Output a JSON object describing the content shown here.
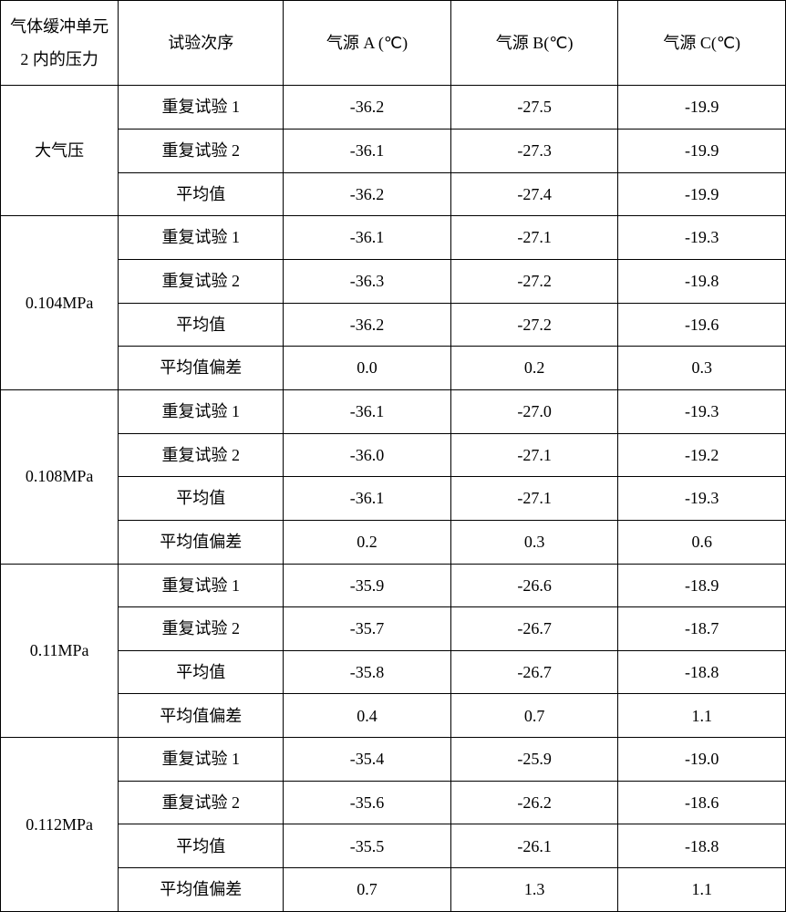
{
  "table": {
    "background_color": "#ffffff",
    "border_color": "#000000",
    "text_color": "#000000",
    "font_size": 18,
    "headers": {
      "pressure": "气体缓冲单元 2 内的压力",
      "trial": "试验次序",
      "sourceA": "气源 A (℃)",
      "sourceB": "气源 B(℃)",
      "sourceC": "气源 C(℃)"
    },
    "row_labels": {
      "trial1": "重复试验 1",
      "trial2": "重复试验 2",
      "mean": "平均值",
      "deviation": "平均值偏差"
    },
    "groups": [
      {
        "pressure": "大气压",
        "has_deviation": false,
        "rows": [
          {
            "label": "trial1",
            "a": "-36.2",
            "b": "-27.5",
            "c": "-19.9"
          },
          {
            "label": "trial2",
            "a": "-36.1",
            "b": "-27.3",
            "c": "-19.9"
          },
          {
            "label": "mean",
            "a": "-36.2",
            "b": "-27.4",
            "c": "-19.9"
          }
        ]
      },
      {
        "pressure": "0.104MPa",
        "has_deviation": true,
        "rows": [
          {
            "label": "trial1",
            "a": "-36.1",
            "b": "-27.1",
            "c": "-19.3"
          },
          {
            "label": "trial2",
            "a": "-36.3",
            "b": "-27.2",
            "c": "-19.8"
          },
          {
            "label": "mean",
            "a": "-36.2",
            "b": "-27.2",
            "c": "-19.6"
          },
          {
            "label": "deviation",
            "a": "0.0",
            "b": "0.2",
            "c": "0.3"
          }
        ]
      },
      {
        "pressure": "0.108MPa",
        "has_deviation": true,
        "rows": [
          {
            "label": "trial1",
            "a": "-36.1",
            "b": "-27.0",
            "c": "-19.3"
          },
          {
            "label": "trial2",
            "a": "-36.0",
            "b": "-27.1",
            "c": "-19.2"
          },
          {
            "label": "mean",
            "a": "-36.1",
            "b": "-27.1",
            "c": "-19.3"
          },
          {
            "label": "deviation",
            "a": "0.2",
            "b": "0.3",
            "c": "0.6"
          }
        ]
      },
      {
        "pressure": "0.11MPa",
        "has_deviation": true,
        "rows": [
          {
            "label": "trial1",
            "a": "-35.9",
            "b": "-26.6",
            "c": "-18.9"
          },
          {
            "label": "trial2",
            "a": "-35.7",
            "b": "-26.7",
            "c": "-18.7"
          },
          {
            "label": "mean",
            "a": "-35.8",
            "b": "-26.7",
            "c": "-18.8"
          },
          {
            "label": "deviation",
            "a": "0.4",
            "b": "0.7",
            "c": "1.1"
          }
        ]
      },
      {
        "pressure": "0.112MPa",
        "has_deviation": true,
        "rows": [
          {
            "label": "trial1",
            "a": "-35.4",
            "b": "-25.9",
            "c": "-19.0"
          },
          {
            "label": "trial2",
            "a": "-35.6",
            "b": "-26.2",
            "c": "-18.6"
          },
          {
            "label": "mean",
            "a": "-35.5",
            "b": "-26.1",
            "c": "-18.8"
          },
          {
            "label": "deviation",
            "a": "0.7",
            "b": "1.3",
            "c": "1.1"
          }
        ]
      }
    ]
  }
}
